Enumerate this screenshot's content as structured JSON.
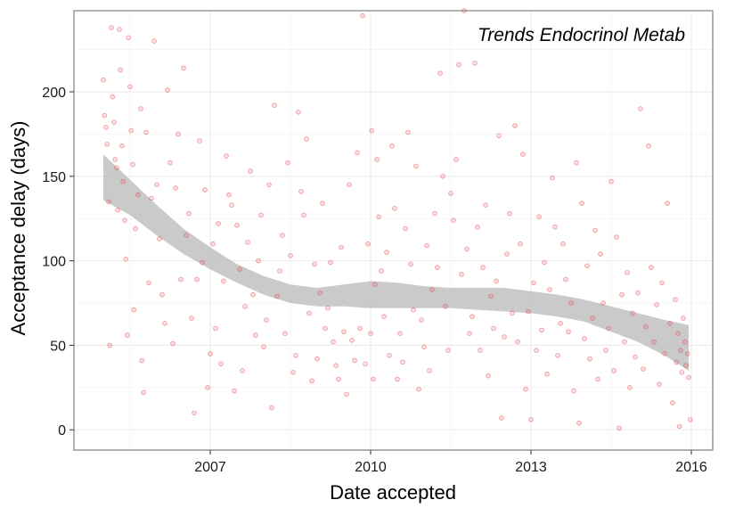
{
  "chart_data": {
    "type": "scatter",
    "title": "Trends Endocrinol Metab",
    "xlabel": "Date accepted",
    "ylabel": "Acceptance delay (days)",
    "xlim": [
      2004.45,
      2016.4
    ],
    "ylim": [
      -12,
      248
    ],
    "x_ticks": [
      2007,
      2010,
      2013,
      2016
    ],
    "x_tick_labels": [
      "2007",
      "2010",
      "2013",
      "2016"
    ],
    "y_ticks": [
      0,
      50,
      100,
      150,
      200
    ],
    "y_tick_labels": [
      "0",
      "50",
      "100",
      "150",
      "200"
    ],
    "grid": true,
    "point_color": "#e8474d",
    "ribbon_color": "#bdbdbd",
    "legend": "none",
    "smooth_band": {
      "x": [
        2005.0,
        2005.5,
        2006.0,
        2006.5,
        2007.0,
        2007.5,
        2008.0,
        2008.5,
        2009.0,
        2009.5,
        2010.0,
        2010.5,
        2011.0,
        2011.5,
        2012.0,
        2012.5,
        2013.0,
        2013.5,
        2014.0,
        2014.5,
        2015.0,
        2015.5,
        2015.95
      ],
      "upper": [
        163,
        148,
        133,
        119,
        108,
        98,
        91,
        86,
        84,
        86,
        88,
        87,
        85,
        84,
        84,
        84,
        82,
        80,
        77,
        73,
        69,
        65,
        62
      ],
      "lower": [
        136,
        127,
        115,
        104,
        95,
        87,
        80,
        75,
        73,
        73,
        72,
        72,
        72,
        72,
        71,
        70,
        69,
        67,
        64,
        58,
        52,
        44,
        35
      ]
    },
    "points": [
      [
        2005.0,
        207
      ],
      [
        2005.02,
        186
      ],
      [
        2005.05,
        179
      ],
      [
        2005.07,
        169
      ],
      [
        2005.1,
        135
      ],
      [
        2005.12,
        50
      ],
      [
        2005.15,
        238
      ],
      [
        2005.17,
        197
      ],
      [
        2005.2,
        182
      ],
      [
        2005.22,
        160
      ],
      [
        2005.25,
        155
      ],
      [
        2005.27,
        130
      ],
      [
        2005.3,
        237
      ],
      [
        2005.32,
        213
      ],
      [
        2005.35,
        168
      ],
      [
        2005.37,
        147
      ],
      [
        2005.4,
        124
      ],
      [
        2005.42,
        101
      ],
      [
        2005.45,
        56
      ],
      [
        2005.47,
        232
      ],
      [
        2005.5,
        203
      ],
      [
        2005.52,
        177
      ],
      [
        2005.55,
        157
      ],
      [
        2005.57,
        71
      ],
      [
        2005.6,
        119
      ],
      [
        2005.65,
        139
      ],
      [
        2005.7,
        190
      ],
      [
        2005.72,
        41
      ],
      [
        2005.75,
        22
      ],
      [
        2005.8,
        176
      ],
      [
        2005.85,
        87
      ],
      [
        2005.9,
        137
      ],
      [
        2005.95,
        230
      ],
      [
        2006.0,
        145
      ],
      [
        2006.05,
        113
      ],
      [
        2006.1,
        80
      ],
      [
        2006.15,
        63
      ],
      [
        2006.2,
        201
      ],
      [
        2006.25,
        158
      ],
      [
        2006.3,
        51
      ],
      [
        2006.35,
        143
      ],
      [
        2006.4,
        175
      ],
      [
        2006.45,
        89
      ],
      [
        2006.5,
        214
      ],
      [
        2006.55,
        115
      ],
      [
        2006.6,
        128
      ],
      [
        2006.65,
        66
      ],
      [
        2006.7,
        10
      ],
      [
        2006.75,
        89
      ],
      [
        2006.8,
        171
      ],
      [
        2006.85,
        99
      ],
      [
        2006.9,
        142
      ],
      [
        2006.95,
        25
      ],
      [
        2007.0,
        45
      ],
      [
        2007.05,
        110
      ],
      [
        2007.1,
        60
      ],
      [
        2007.15,
        122
      ],
      [
        2007.2,
        39
      ],
      [
        2007.25,
        88
      ],
      [
        2007.3,
        162
      ],
      [
        2007.35,
        139
      ],
      [
        2007.4,
        133
      ],
      [
        2007.45,
        23
      ],
      [
        2007.5,
        121
      ],
      [
        2007.55,
        95
      ],
      [
        2007.6,
        35
      ],
      [
        2007.65,
        73
      ],
      [
        2007.7,
        111
      ],
      [
        2007.75,
        153
      ],
      [
        2007.8,
        80
      ],
      [
        2007.85,
        56
      ],
      [
        2007.9,
        100
      ],
      [
        2007.95,
        127
      ],
      [
        2008.0,
        49
      ],
      [
        2008.05,
        65
      ],
      [
        2008.1,
        145
      ],
      [
        2008.15,
        13
      ],
      [
        2008.2,
        192
      ],
      [
        2008.25,
        79
      ],
      [
        2008.3,
        94
      ],
      [
        2008.35,
        115
      ],
      [
        2008.4,
        57
      ],
      [
        2008.45,
        158
      ],
      [
        2008.5,
        103
      ],
      [
        2008.55,
        34
      ],
      [
        2008.6,
        44
      ],
      [
        2008.65,
        188
      ],
      [
        2008.7,
        141
      ],
      [
        2008.75,
        127
      ],
      [
        2008.8,
        172
      ],
      [
        2008.85,
        69
      ],
      [
        2008.9,
        29
      ],
      [
        2008.95,
        98
      ],
      [
        2009.0,
        42
      ],
      [
        2009.05,
        81
      ],
      [
        2009.1,
        134
      ],
      [
        2009.15,
        60
      ],
      [
        2009.2,
        72
      ],
      [
        2009.25,
        99
      ],
      [
        2009.3,
        52
      ],
      [
        2009.35,
        38
      ],
      [
        2009.4,
        30
      ],
      [
        2009.45,
        108
      ],
      [
        2009.5,
        58
      ],
      [
        2009.55,
        21
      ],
      [
        2009.6,
        145
      ],
      [
        2009.65,
        53
      ],
      [
        2009.7,
        41
      ],
      [
        2009.75,
        164
      ],
      [
        2009.8,
        60
      ],
      [
        2009.85,
        245
      ],
      [
        2009.9,
        39
      ],
      [
        2009.95,
        110
      ],
      [
        2010.0,
        57
      ],
      [
        2010.02,
        177
      ],
      [
        2010.05,
        30
      ],
      [
        2010.08,
        86
      ],
      [
        2010.12,
        160
      ],
      [
        2010.15,
        126
      ],
      [
        2010.2,
        94
      ],
      [
        2010.25,
        67
      ],
      [
        2010.3,
        105
      ],
      [
        2010.35,
        44
      ],
      [
        2010.4,
        168
      ],
      [
        2010.45,
        131
      ],
      [
        2010.5,
        30
      ],
      [
        2010.55,
        57
      ],
      [
        2010.6,
        40
      ],
      [
        2010.65,
        119
      ],
      [
        2010.7,
        176
      ],
      [
        2010.75,
        98
      ],
      [
        2010.8,
        71
      ],
      [
        2010.85,
        156
      ],
      [
        2010.9,
        24
      ],
      [
        2010.95,
        65
      ],
      [
        2011.0,
        49
      ],
      [
        2011.05,
        109
      ],
      [
        2011.1,
        35
      ],
      [
        2011.15,
        83
      ],
      [
        2011.2,
        128
      ],
      [
        2011.25,
        96
      ],
      [
        2011.3,
        211
      ],
      [
        2011.35,
        150
      ],
      [
        2011.4,
        73
      ],
      [
        2011.45,
        47
      ],
      [
        2011.5,
        140
      ],
      [
        2011.55,
        124
      ],
      [
        2011.6,
        160
      ],
      [
        2011.65,
        216
      ],
      [
        2011.7,
        92
      ],
      [
        2011.75,
        248
      ],
      [
        2011.8,
        107
      ],
      [
        2011.85,
        57
      ],
      [
        2011.9,
        67
      ],
      [
        2011.95,
        217
      ],
      [
        2012.0,
        120
      ],
      [
        2012.05,
        47
      ],
      [
        2012.1,
        96
      ],
      [
        2012.15,
        133
      ],
      [
        2012.2,
        32
      ],
      [
        2012.25,
        79
      ],
      [
        2012.3,
        60
      ],
      [
        2012.35,
        88
      ],
      [
        2012.4,
        174
      ],
      [
        2012.45,
        7
      ],
      [
        2012.5,
        55
      ],
      [
        2012.55,
        104
      ],
      [
        2012.6,
        128
      ],
      [
        2012.65,
        69
      ],
      [
        2012.7,
        180
      ],
      [
        2012.75,
        52
      ],
      [
        2012.8,
        110
      ],
      [
        2012.85,
        163
      ],
      [
        2012.9,
        24
      ],
      [
        2012.95,
        70
      ],
      [
        2013.0,
        6
      ],
      [
        2013.05,
        87
      ],
      [
        2013.1,
        47
      ],
      [
        2013.15,
        126
      ],
      [
        2013.2,
        59
      ],
      [
        2013.25,
        99
      ],
      [
        2013.3,
        33
      ],
      [
        2013.35,
        83
      ],
      [
        2013.4,
        149
      ],
      [
        2013.45,
        120
      ],
      [
        2013.5,
        44
      ],
      [
        2013.55,
        63
      ],
      [
        2013.6,
        110
      ],
      [
        2013.65,
        89
      ],
      [
        2013.7,
        58
      ],
      [
        2013.75,
        75
      ],
      [
        2013.8,
        23
      ],
      [
        2013.85,
        158
      ],
      [
        2013.9,
        4
      ],
      [
        2013.95,
        134
      ],
      [
        2014.0,
        54
      ],
      [
        2014.05,
        97
      ],
      [
        2014.1,
        42
      ],
      [
        2014.15,
        66
      ],
      [
        2014.2,
        118
      ],
      [
        2014.25,
        30
      ],
      [
        2014.3,
        104
      ],
      [
        2014.35,
        75
      ],
      [
        2014.4,
        47
      ],
      [
        2014.45,
        60
      ],
      [
        2014.5,
        147
      ],
      [
        2014.55,
        35
      ],
      [
        2014.6,
        114
      ],
      [
        2014.65,
        1
      ],
      [
        2014.7,
        80
      ],
      [
        2014.75,
        52
      ],
      [
        2014.8,
        93
      ],
      [
        2014.85,
        25
      ],
      [
        2014.9,
        69
      ],
      [
        2014.95,
        43
      ],
      [
        2015.0,
        81
      ],
      [
        2015.05,
        190
      ],
      [
        2015.1,
        36
      ],
      [
        2015.15,
        61
      ],
      [
        2015.2,
        168
      ],
      [
        2015.25,
        96
      ],
      [
        2015.3,
        52
      ],
      [
        2015.35,
        74
      ],
      [
        2015.4,
        27
      ],
      [
        2015.45,
        87
      ],
      [
        2015.5,
        45
      ],
      [
        2015.55,
        134
      ],
      [
        2015.6,
        63
      ],
      [
        2015.65,
        16
      ],
      [
        2015.7,
        77
      ],
      [
        2015.72,
        40
      ],
      [
        2015.75,
        57
      ],
      [
        2015.78,
        2
      ],
      [
        2015.8,
        47
      ],
      [
        2015.82,
        34
      ],
      [
        2015.85,
        66
      ],
      [
        2015.88,
        52
      ],
      [
        2015.9,
        38
      ],
      [
        2015.93,
        45
      ],
      [
        2015.95,
        31
      ],
      [
        2015.98,
        6
      ]
    ]
  }
}
